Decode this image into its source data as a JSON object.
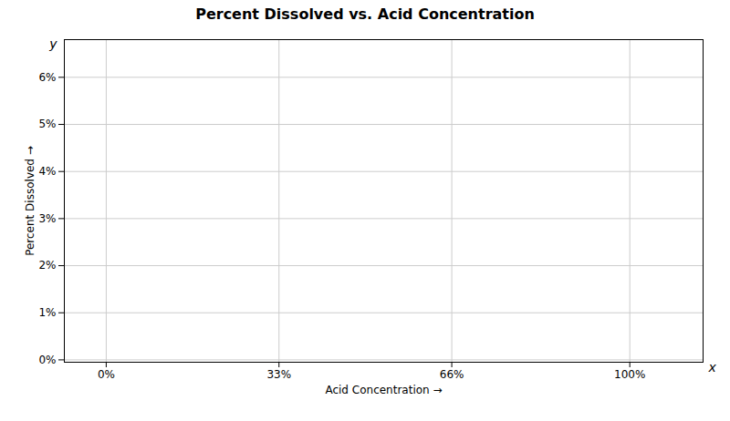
{
  "chart_data": {
    "type": "line",
    "title": "Percent Dissolved vs. Acid Concentration",
    "xlabel": "Acid Concentration",
    "ylabel": "Percent Dissolved",
    "annotations": [
      "x",
      "y"
    ],
    "x": [],
    "series": [],
    "xlim": [
      -8,
      114
    ],
    "ylim": [
      -0.05,
      6.8
    ],
    "xticks": [
      {
        "value": 0,
        "label": "0%"
      },
      {
        "value": 33,
        "label": "33%"
      },
      {
        "value": 66,
        "label": "66%"
      },
      {
        "value": 100,
        "label": "100%"
      }
    ],
    "yticks": [
      {
        "value": 0,
        "label": "0%"
      },
      {
        "value": 1,
        "label": "1%"
      },
      {
        "value": 2,
        "label": "2%"
      },
      {
        "value": 3,
        "label": "3%"
      },
      {
        "value": 4,
        "label": "4%"
      },
      {
        "value": 5,
        "label": "5%"
      },
      {
        "value": 6,
        "label": "6%"
      }
    ],
    "grid": true
  }
}
